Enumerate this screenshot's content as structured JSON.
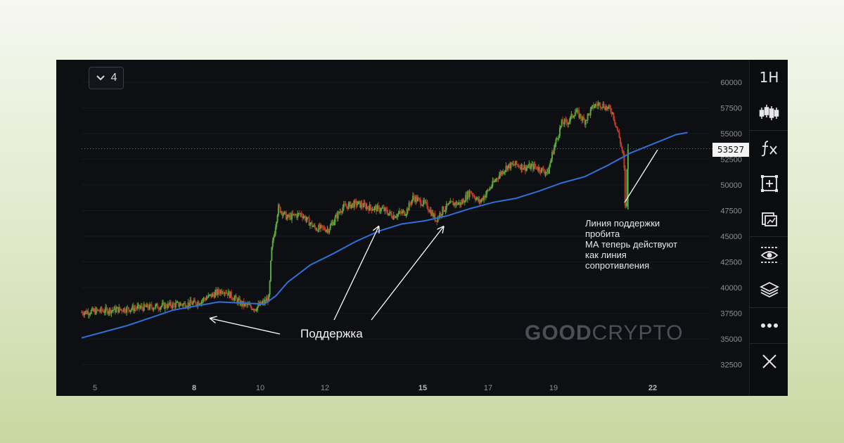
{
  "timeframe_selector": {
    "label": "4"
  },
  "current_price_label": "53527",
  "watermark": {
    "bold": "GOOD",
    "light": "CRYPTO"
  },
  "annotations": {
    "support": "Поддержка",
    "broken": [
      "Линия поддержки",
      "пробита",
      "МА теперь действуют",
      "как линия",
      "сопротивления"
    ]
  },
  "toolbar": {
    "interval_label": "1H",
    "icons": [
      "candlestick-icon",
      "fx-indicator-icon",
      "add-frame-icon",
      "compare-icon",
      "eye-icon",
      "layers-icon",
      "more-icon",
      "close-icon"
    ]
  },
  "chart_data": {
    "type": "candlestick",
    "x_tick_labels": [
      "5",
      "8",
      "10",
      "12",
      "15",
      "17",
      "19",
      "22"
    ],
    "y_tick_labels": [
      "60000",
      "57500",
      "55000",
      "52500",
      "50000",
      "47500",
      "45000",
      "42500",
      "40000",
      "37500",
      "35000",
      "32500"
    ],
    "ylim": [
      31500,
      61000
    ],
    "current_price": 53527,
    "price_series": [
      [
        0,
        37600
      ],
      [
        3,
        38100
      ],
      [
        5,
        38500
      ],
      [
        6.2,
        39800
      ],
      [
        7,
        38400
      ],
      [
        7.6,
        38000
      ],
      [
        8,
        38600
      ],
      [
        8.2,
        39000
      ],
      [
        8.3,
        43500
      ],
      [
        8.6,
        47800
      ],
      [
        9,
        46800
      ],
      [
        9.6,
        47200
      ],
      [
        10.2,
        45800
      ],
      [
        10.8,
        45700
      ],
      [
        11.4,
        47800
      ],
      [
        12,
        48200
      ],
      [
        12.6,
        47800
      ],
      [
        13.2,
        47600
      ],
      [
        13.6,
        47000
      ],
      [
        14.2,
        47400
      ],
      [
        14.5,
        48800
      ],
      [
        15.1,
        48000
      ],
      [
        15.5,
        46600
      ],
      [
        15.8,
        47600
      ],
      [
        16.2,
        48200
      ],
      [
        16.6,
        48200
      ],
      [
        17,
        49400
      ],
      [
        17.4,
        48300
      ],
      [
        17.8,
        49500
      ],
      [
        18.2,
        50800
      ],
      [
        18.6,
        51800
      ],
      [
        19,
        52000
      ],
      [
        19.4,
        51700
      ],
      [
        19.8,
        51800
      ],
      [
        20.4,
        51200
      ],
      [
        20.6,
        53200
      ],
      [
        21,
        56000
      ],
      [
        21.3,
        56200
      ],
      [
        21.6,
        57200
      ],
      [
        22,
        56200
      ],
      [
        22.4,
        57700
      ],
      [
        22.7,
        57900
      ],
      [
        23.2,
        57200
      ],
      [
        23.5,
        54800
      ],
      [
        23.7,
        52700
      ],
      [
        23.8,
        48600
      ],
      [
        23.9,
        53500
      ]
    ],
    "ma_series": [
      [
        0,
        35100
      ],
      [
        2,
        36300
      ],
      [
        4,
        37800
      ],
      [
        6,
        38600
      ],
      [
        8,
        38400
      ],
      [
        8.5,
        39200
      ],
      [
        9,
        40500
      ],
      [
        10,
        42200
      ],
      [
        11,
        43300
      ],
      [
        12,
        44500
      ],
      [
        13,
        45500
      ],
      [
        14,
        46200
      ],
      [
        15,
        46500
      ],
      [
        16,
        47000
      ],
      [
        17,
        47700
      ],
      [
        18,
        48300
      ],
      [
        19,
        48700
      ],
      [
        20,
        49400
      ],
      [
        21,
        50200
      ],
      [
        22,
        50800
      ],
      [
        23,
        51900
      ],
      [
        24,
        53100
      ],
      [
        25,
        54000
      ],
      [
        26,
        54900
      ],
      [
        26.5,
        55100
      ]
    ],
    "x_range": [
      0,
      27.5
    ]
  }
}
